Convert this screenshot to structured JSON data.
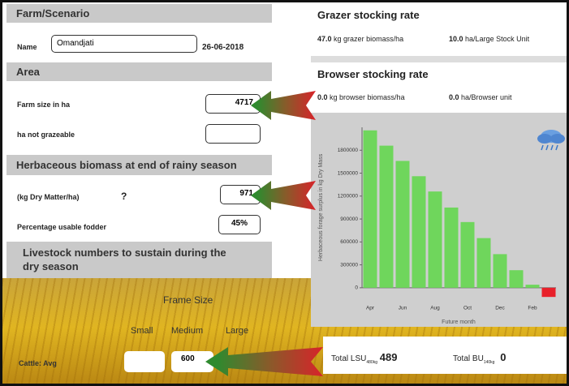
{
  "left": {
    "farm_header": "Farm/Scenario",
    "name_label": "Name",
    "name_value": "Omandjati",
    "date": "26-06-2018",
    "area_header": "Area",
    "farm_size_label": "Farm size in ha",
    "farm_size_value": "4717",
    "not_grazeable_label": "ha not grazeable",
    "biomass_header": "Herbaceous biomass at end of rainy season",
    "dm_label": "(kg Dry Matter/ha)",
    "help": "?",
    "dm_value": "971",
    "fodder_label": "Percentage usable fodder",
    "fodder_value": "45%",
    "livestock_header": "Livestock numbers to sustain during the dry season",
    "frame_size": "Frame Size",
    "sizes": [
      "Small",
      "Medium",
      "Large"
    ],
    "cattle_label": "Cattle: Avg",
    "cattle_medium": "600"
  },
  "right": {
    "grazer_header": "Grazer stocking rate",
    "grazer_biomass": "47.0",
    "grazer_biomass_unit": "kg grazer biomass/ha",
    "grazer_area": "10.0",
    "grazer_area_unit": "ha/Large Stock Unit",
    "browser_header": "Browser stocking rate",
    "browser_biomass": "0.0",
    "browser_biomass_unit": "kg browser biomass/ha",
    "browser_area": "0.0",
    "browser_area_unit": "ha/Browser unit",
    "total_lsu_label": "Total LSU",
    "total_lsu_sub": "480kg",
    "total_lsu": "489",
    "total_bu_label": "Total BU",
    "total_bu_sub": "140kg",
    "total_bu": "0"
  },
  "chart_data": {
    "type": "bar",
    "y_label": "Herbaceous forage surplus in kg Dry Mass",
    "x_label": "Future month",
    "categories": [
      "Apr",
      null,
      "Jun",
      null,
      "Aug",
      null,
      "Oct",
      null,
      "Dec",
      null,
      "Feb",
      null
    ],
    "values": [
      2060000,
      1860000,
      1660000,
      1460000,
      1260000,
      1050000,
      860000,
      650000,
      440000,
      230000,
      40000,
      -120000
    ],
    "color": "#6fd65c",
    "negative_color": "#e8202a",
    "ylim": [
      -150000,
      2100000
    ],
    "yticks": [
      0,
      300000,
      600000,
      900000,
      1200000,
      1500000,
      1800000
    ]
  }
}
